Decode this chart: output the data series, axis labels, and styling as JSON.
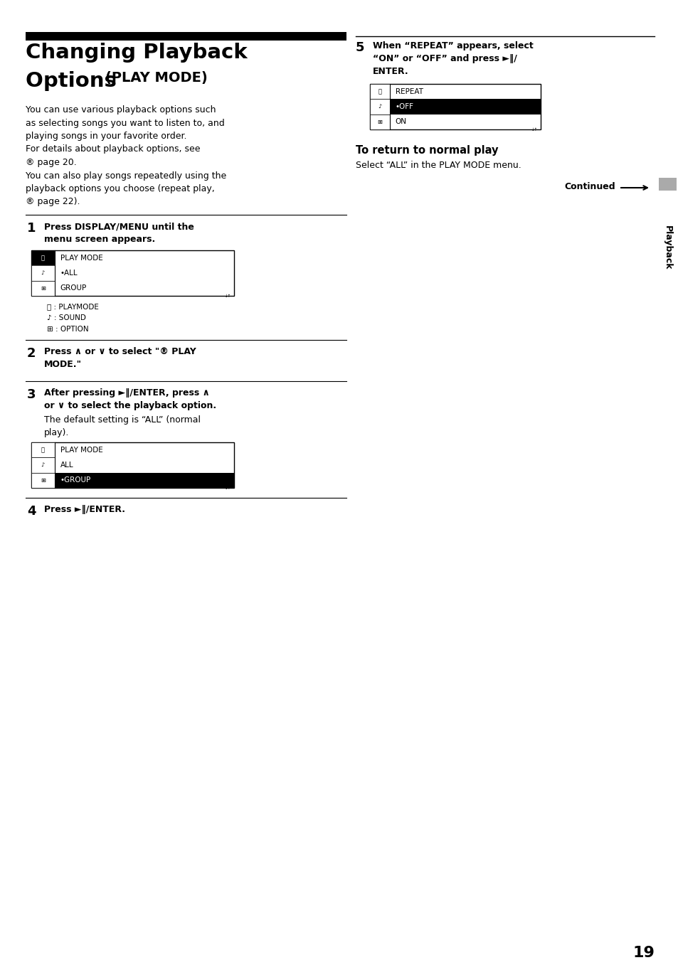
{
  "bg_color": "#ffffff",
  "page_number": "19",
  "title_line1": "Changing Playback",
  "title_line2": "Options ",
  "title_play_mode": "(PLAY MODE)",
  "intro_lines": [
    "You can use various playback options such",
    "as selecting songs you want to listen to, and",
    "playing songs in your favorite order.",
    "For details about playback options, see",
    "® page 20.",
    "You can also play songs repeatedly using the",
    "playback options you choose (repeat play,",
    "® page 22)."
  ],
  "step1_text1": "Press DISPLAY/MENU until the",
  "step1_text2": "menu screen appears.",
  "step2_text1": "Press ∧ or ∨ to select \"® PLAY",
  "step2_text2": "MODE.\"",
  "step3_text1": "After pressing ►‖/ENTER, press ∧",
  "step3_text2": "or ∨ to select the playback option.",
  "step3_text3": "The default setting is “ALL” (normal",
  "step3_text4": "play).",
  "step4_text": "Press ►‖/ENTER.",
  "step5_text1": "When “REPEAT” appears, select",
  "step5_text2": "“ON” or “OFF” and press ►‖/",
  "step5_text3": "ENTER.",
  "return_title": "To return to normal play",
  "return_text": "Select “ALL” in the PLAY MODE menu.",
  "continued_text": "Continued",
  "sidebar_text": "Playback",
  "sidebar_color": "#aaaaaa"
}
